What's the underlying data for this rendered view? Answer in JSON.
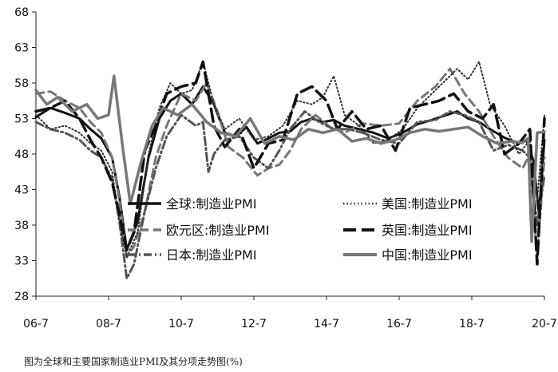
{
  "caption": "图为全球和主要国家制造业PMI及其分项走势图(%)",
  "chart_data": {
    "type": "line",
    "title": "",
    "xlabel": "",
    "ylabel": "",
    "ylim": [
      28,
      68
    ],
    "xlim": [
      2006.5,
      2020.5
    ],
    "yticks": [
      28,
      33,
      38,
      43,
      48,
      53,
      58,
      63,
      68
    ],
    "xticks": [
      {
        "label": "06-7",
        "x": 2006.5
      },
      {
        "label": "08-7",
        "x": 2008.5
      },
      {
        "label": "10-7",
        "x": 2010.5
      },
      {
        "label": "12-7",
        "x": 2012.5
      },
      {
        "label": "14-7",
        "x": 2014.5
      },
      {
        "label": "16-7",
        "x": 2016.5
      },
      {
        "label": "18-7",
        "x": 2018.5
      },
      {
        "label": "20-7",
        "x": 2020.5
      }
    ],
    "grid": false,
    "legend_position": "lower-center",
    "series": [
      {
        "name": "全球:制造业PMI",
        "style": "solid",
        "color": "#111111",
        "x": [
          2006.5,
          2006.9,
          2007.3,
          2007.7,
          2008.0,
          2008.3,
          2008.6,
          2008.8,
          2009.0,
          2009.3,
          2009.6,
          2009.9,
          2010.2,
          2010.5,
          2010.8,
          2011.1,
          2011.4,
          2011.7,
          2012.0,
          2012.3,
          2012.6,
          2012.9,
          2013.2,
          2013.5,
          2013.8,
          2014.1,
          2014.4,
          2014.7,
          2015.0,
          2015.4,
          2015.8,
          2016.2,
          2016.6,
          2017.0,
          2017.4,
          2017.8,
          2018.1,
          2018.4,
          2018.7,
          2019.0,
          2019.4,
          2019.8,
          2020.0,
          2020.2,
          2020.35,
          2020.5
        ],
        "values": [
          53.2,
          54.5,
          53.8,
          53.0,
          51.5,
          50.2,
          47.5,
          42.0,
          34.5,
          38.5,
          47.5,
          53.0,
          55.5,
          56.5,
          55.0,
          57.5,
          55.0,
          51.0,
          50.5,
          51.8,
          49.5,
          50.2,
          51.0,
          51.2,
          52.5,
          53.0,
          52.5,
          52.8,
          52.0,
          51.5,
          51.0,
          50.2,
          51.0,
          52.2,
          52.8,
          53.5,
          54.0,
          53.0,
          52.5,
          51.5,
          50.3,
          49.5,
          50.0,
          47.0,
          39.5,
          50.0
        ]
      },
      {
        "name": "欧元区:制造业PMI",
        "style": "dashed",
        "color": "#777777",
        "x": [
          2006.5,
          2006.9,
          2007.3,
          2007.7,
          2008.0,
          2008.3,
          2008.6,
          2008.8,
          2009.0,
          2009.2,
          2009.5,
          2009.8,
          2010.1,
          2010.5,
          2010.9,
          2011.2,
          2011.5,
          2011.8,
          2012.2,
          2012.6,
          2012.9,
          2013.2,
          2013.5,
          2013.8,
          2014.2,
          2014.6,
          2015.0,
          2015.5,
          2016.0,
          2016.5,
          2017.0,
          2017.5,
          2017.9,
          2018.3,
          2018.7,
          2019.1,
          2019.5,
          2019.9,
          2020.1,
          2020.3,
          2020.5
        ],
        "values": [
          56.5,
          56.8,
          55.5,
          54.5,
          52.5,
          51.0,
          47.5,
          41.5,
          33.5,
          35.0,
          40.0,
          47.5,
          52.0,
          56.5,
          55.5,
          58.0,
          54.0,
          49.0,
          47.5,
          45.0,
          46.0,
          46.5,
          48.5,
          51.5,
          53.5,
          51.8,
          51.0,
          52.3,
          52.0,
          52.3,
          55.5,
          57.5,
          60.0,
          56.5,
          54.0,
          50.5,
          47.5,
          46.0,
          48.0,
          33.5,
          47.5
        ]
      },
      {
        "name": "日本:制造业PMI",
        "style": "dashdot",
        "color": "#555555",
        "x": [
          2006.5,
          2006.9,
          2007.3,
          2007.7,
          2008.0,
          2008.3,
          2008.6,
          2008.8,
          2009.0,
          2009.2,
          2009.5,
          2009.8,
          2010.1,
          2010.5,
          2010.9,
          2011.1,
          2011.25,
          2011.4,
          2011.7,
          2012.1,
          2012.5,
          2012.9,
          2013.2,
          2013.5,
          2013.9,
          2014.3,
          2014.7,
          2015.1,
          2015.5,
          2016.0,
          2016.5,
          2017.0,
          2017.5,
          2017.9,
          2018.3,
          2018.7,
          2019.1,
          2019.5,
          2019.9,
          2020.1,
          2020.3,
          2020.5
        ],
        "values": [
          52.5,
          51.5,
          51.0,
          50.0,
          48.5,
          47.5,
          44.5,
          38.5,
          30.5,
          32.5,
          40.0,
          46.0,
          50.5,
          53.5,
          52.0,
          52.5,
          45.5,
          48.0,
          50.0,
          50.5,
          47.5,
          46.0,
          48.5,
          51.5,
          54.0,
          52.5,
          51.5,
          51.5,
          51.0,
          50.0,
          49.5,
          52.5,
          52.8,
          54.0,
          53.5,
          52.5,
          48.5,
          49.3,
          48.5,
          47.5,
          38.0,
          45.0
        ]
      },
      {
        "name": "美国:制造业PMI",
        "style": "dotted",
        "color": "#333333",
        "x": [
          2006.5,
          2006.9,
          2007.3,
          2007.7,
          2008.0,
          2008.3,
          2008.6,
          2008.8,
          2009.0,
          2009.3,
          2009.6,
          2009.9,
          2010.2,
          2010.5,
          2010.8,
          2011.1,
          2011.4,
          2011.7,
          2012.1,
          2012.5,
          2012.9,
          2013.3,
          2013.7,
          2014.1,
          2014.4,
          2014.7,
          2015.0,
          2015.4,
          2015.8,
          2016.2,
          2016.6,
          2017.0,
          2017.4,
          2017.8,
          2018.1,
          2018.4,
          2018.7,
          2019.0,
          2019.4,
          2019.8,
          2020.1,
          2020.3,
          2020.5
        ],
        "values": [
          53.5,
          51.5,
          52.0,
          51.0,
          49.5,
          48.5,
          45.5,
          38.5,
          33.5,
          37.0,
          48.0,
          54.5,
          58.0,
          56.5,
          57.0,
          61.0,
          55.0,
          51.5,
          53.0,
          50.0,
          50.5,
          52.0,
          55.5,
          55.0,
          56.0,
          59.0,
          53.5,
          52.0,
          49.5,
          50.0,
          51.5,
          54.5,
          56.5,
          58.5,
          60.0,
          58.5,
          61.0,
          55.0,
          52.0,
          48.0,
          50.0,
          41.5,
          53.5
        ]
      },
      {
        "name": "英国:制造业PMI",
        "style": "longdash",
        "color": "#111111",
        "x": [
          2006.5,
          2006.9,
          2007.3,
          2007.7,
          2008.0,
          2008.3,
          2008.6,
          2008.8,
          2009.0,
          2009.2,
          2009.5,
          2009.8,
          2010.1,
          2010.5,
          2010.9,
          2011.1,
          2011.4,
          2011.7,
          2012.1,
          2012.5,
          2012.9,
          2013.3,
          2013.7,
          2014.1,
          2014.5,
          2014.8,
          2015.2,
          2015.6,
          2016.0,
          2016.4,
          2016.8,
          2017.2,
          2017.6,
          2018.0,
          2018.4,
          2018.8,
          2019.1,
          2019.4,
          2019.8,
          2020.1,
          2020.3,
          2020.5
        ],
        "values": [
          54.0,
          54.5,
          55.5,
          53.0,
          50.0,
          47.5,
          44.0,
          39.5,
          34.5,
          37.0,
          48.5,
          52.0,
          56.5,
          57.5,
          58.0,
          61.0,
          52.0,
          49.0,
          51.5,
          46.0,
          49.5,
          50.0,
          56.5,
          57.5,
          55.5,
          51.5,
          54.0,
          51.5,
          52.0,
          48.5,
          54.5,
          55.0,
          55.5,
          56.5,
          54.0,
          53.0,
          55.0,
          48.0,
          49.5,
          51.5,
          32.5,
          53.0
        ]
      },
      {
        "name": "中国:制造业PMI",
        "style": "solid-thick",
        "color": "#777777",
        "x": [
          2006.5,
          2006.8,
          2007.1,
          2007.5,
          2007.9,
          2008.2,
          2008.5,
          2008.65,
          2008.9,
          2009.1,
          2009.4,
          2009.7,
          2010.0,
          2010.4,
          2010.8,
          2011.2,
          2011.6,
          2012.0,
          2012.4,
          2012.8,
          2013.2,
          2013.6,
          2014.0,
          2014.4,
          2014.8,
          2015.2,
          2015.6,
          2016.0,
          2016.4,
          2016.8,
          2017.2,
          2017.6,
          2018.0,
          2018.4,
          2018.8,
          2019.2,
          2019.6,
          2019.9,
          2020.05,
          2020.15,
          2020.3,
          2020.5
        ],
        "values": [
          57.0,
          55.0,
          56.0,
          54.0,
          55.0,
          53.0,
          53.5,
          59.0,
          48.5,
          41.0,
          47.0,
          52.0,
          54.5,
          53.5,
          55.0,
          52.5,
          51.0,
          50.5,
          53.0,
          49.5,
          50.5,
          50.0,
          51.5,
          51.0,
          51.5,
          49.8,
          50.2,
          49.5,
          50.0,
          51.0,
          51.5,
          51.2,
          51.5,
          51.8,
          50.5,
          49.5,
          49.8,
          49.6,
          50.2,
          35.7,
          51.0,
          51.1
        ]
      }
    ]
  }
}
